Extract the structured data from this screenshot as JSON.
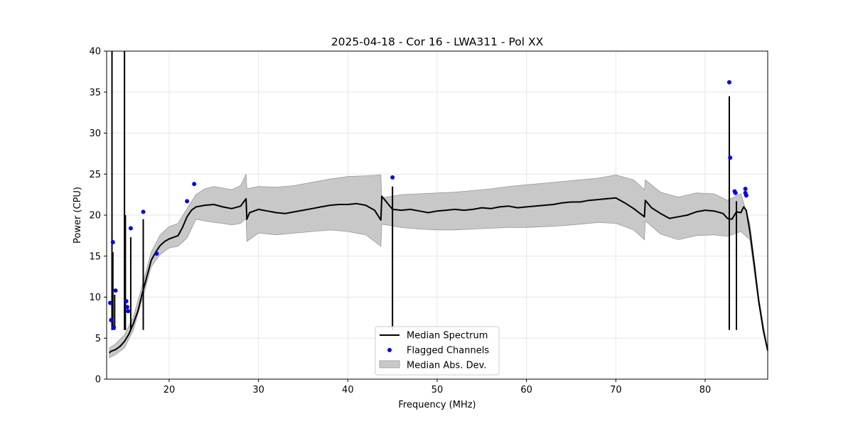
{
  "chart_data": {
    "type": "line",
    "title": "2025-04-18 - Cor 16 - LWA311 - Pol XX",
    "xlabel": "Frequency (MHz)",
    "ylabel": "Power (CPU)",
    "xlim": [
      13,
      87
    ],
    "ylim": [
      0,
      40
    ],
    "xticks": [
      20,
      30,
      40,
      50,
      60,
      70,
      80
    ],
    "yticks": [
      0,
      5,
      10,
      15,
      20,
      25,
      30,
      35,
      40
    ],
    "grid": true,
    "legend_position": "lower-center",
    "legend": [
      "Median Spectrum",
      "Flagged Channels",
      "Median Abs. Dev."
    ],
    "colors": {
      "median": "#000000",
      "flagged": "#0000ff",
      "mad_fill": "#c8c8c8",
      "mad_edge": "#999999",
      "grid": "#e6e6e6"
    },
    "series": [
      {
        "name": "Median Spectrum",
        "x": [
          13.3,
          13.5,
          14,
          14.5,
          15,
          15.5,
          16,
          16.5,
          17,
          17.5,
          18,
          18.5,
          19,
          19.5,
          20,
          20.5,
          21,
          21.5,
          22,
          22.5,
          23,
          24,
          25,
          26,
          27,
          28,
          28.6,
          28.7,
          29,
          30,
          31,
          32,
          33,
          34,
          35,
          36,
          37,
          38,
          39,
          40,
          41,
          42,
          43,
          43.7,
          43.8,
          45,
          46,
          47,
          48,
          49,
          50,
          51,
          52,
          53,
          54,
          55,
          56,
          57,
          58,
          59,
          60,
          61,
          62,
          63,
          64,
          65,
          66,
          67,
          68,
          69,
          70,
          71,
          72,
          73.2,
          73.3,
          74,
          75,
          76,
          77,
          78,
          79,
          80,
          81,
          82,
          82.5,
          83,
          83.5,
          84,
          84.3,
          84.6,
          85,
          85.5,
          86,
          86.5,
          87
        ],
        "y": [
          3.2,
          3.4,
          3.6,
          4.0,
          4.6,
          5.5,
          6.8,
          8.3,
          10.5,
          12.5,
          14.5,
          15.5,
          16.3,
          16.8,
          17.1,
          17.3,
          17.5,
          18.5,
          19.8,
          20.6,
          21.0,
          21.2,
          21.3,
          21.0,
          20.8,
          21.1,
          22.0,
          19.5,
          20.3,
          20.7,
          20.5,
          20.3,
          20.2,
          20.4,
          20.6,
          20.8,
          21.0,
          21.2,
          21.3,
          21.3,
          21.4,
          21.2,
          20.6,
          19.4,
          22.3,
          20.7,
          20.6,
          20.7,
          20.5,
          20.3,
          20.5,
          20.6,
          20.7,
          20.6,
          20.7,
          20.9,
          20.8,
          21.0,
          21.1,
          20.9,
          21.0,
          21.1,
          21.2,
          21.3,
          21.5,
          21.6,
          21.6,
          21.8,
          21.9,
          22.0,
          22.1,
          21.5,
          20.8,
          19.8,
          21.8,
          20.9,
          20.2,
          19.6,
          19.8,
          20.0,
          20.4,
          20.6,
          20.5,
          20.2,
          19.6,
          19.5,
          20.4,
          20.3,
          21.0,
          20.6,
          18.0,
          14.0,
          9.5,
          6.0,
          3.5
        ]
      },
      {
        "name": "Median Abs. Dev. Upper",
        "x": [
          13.3,
          14,
          15,
          16,
          17,
          18,
          19,
          20,
          21,
          22,
          23,
          24,
          25,
          26,
          27,
          28,
          28.6,
          28.7,
          30,
          32,
          34,
          36,
          38,
          40,
          42,
          43.7,
          43.8,
          46,
          48,
          50,
          52,
          54,
          56,
          58,
          60,
          62,
          64,
          66,
          68,
          70,
          72,
          73.2,
          73.3,
          75,
          77,
          79,
          81,
          82.5,
          84,
          85,
          86,
          87
        ],
        "y": [
          3.8,
          4.3,
          5.4,
          7.6,
          11.5,
          15.5,
          17.6,
          18.6,
          19.0,
          20.8,
          22.5,
          23.2,
          23.5,
          23.3,
          23.1,
          23.6,
          25.0,
          23.2,
          23.5,
          23.4,
          23.6,
          24.0,
          24.4,
          24.7,
          24.8,
          24.9,
          22.1,
          22.5,
          22.6,
          22.7,
          22.8,
          23.0,
          23.2,
          23.5,
          23.7,
          23.9,
          24.1,
          24.3,
          24.5,
          24.9,
          24.3,
          23.1,
          24.3,
          22.8,
          22.2,
          22.7,
          22.6,
          21.8,
          22.6,
          19.0,
          10.0,
          3.6
        ]
      },
      {
        "name": "Median Abs. Dev. Lower",
        "x": [
          13.3,
          14,
          15,
          16,
          17,
          18,
          19,
          20,
          21,
          22,
          23,
          24,
          25,
          26,
          27,
          28,
          28.6,
          28.7,
          30,
          32,
          34,
          36,
          38,
          40,
          42,
          43.7,
          43.8,
          46,
          48,
          50,
          52,
          54,
          56,
          58,
          60,
          62,
          64,
          66,
          68,
          70,
          72,
          73.2,
          73.3,
          75,
          77,
          79,
          81,
          82.5,
          84,
          85,
          86,
          87
        ],
        "y": [
          2.6,
          3.0,
          3.8,
          6.0,
          9.8,
          13.7,
          15.2,
          16.0,
          16.2,
          17.2,
          19.5,
          19.3,
          19.1,
          19.0,
          18.8,
          19.0,
          19.6,
          16.8,
          17.8,
          17.6,
          17.8,
          18.0,
          18.2,
          18.0,
          17.6,
          16.2,
          18.9,
          18.5,
          18.3,
          18.2,
          18.2,
          18.3,
          18.4,
          18.5,
          18.5,
          18.6,
          18.7,
          18.9,
          19.1,
          19.0,
          18.2,
          17.0,
          19.3,
          17.7,
          17.0,
          17.5,
          17.6,
          17.4,
          18.0,
          17.0,
          9.0,
          3.3
        ]
      },
      {
        "name": "Flagged Channels",
        "x": [
          13.4,
          13.5,
          13.7,
          13.8,
          14.0,
          15.2,
          15.3,
          15.4,
          15.7,
          17.1,
          18.6,
          22.0,
          22.8,
          45.0,
          82.7,
          82.8,
          83.3,
          83.4,
          84.5,
          84.5,
          84.6
        ],
        "y": [
          9.3,
          7.2,
          16.7,
          6.3,
          10.8,
          9.5,
          8.8,
          8.3,
          18.4,
          20.4,
          15.3,
          21.7,
          23.8,
          24.6,
          36.2,
          27.0,
          22.9,
          22.7,
          23.2,
          22.7,
          22.4
        ]
      },
      {
        "name": "Spikes",
        "x": [
          13.6,
          13.7,
          13.9,
          14.2,
          15.0,
          15.1,
          15.7,
          17.1,
          45.0,
          82.7,
          83.5
        ],
        "y": [
          40,
          15.5,
          10.3,
          5.5,
          40,
          20.0,
          17.3,
          19.5,
          23.5,
          34.5,
          21.7
        ]
      }
    ]
  }
}
